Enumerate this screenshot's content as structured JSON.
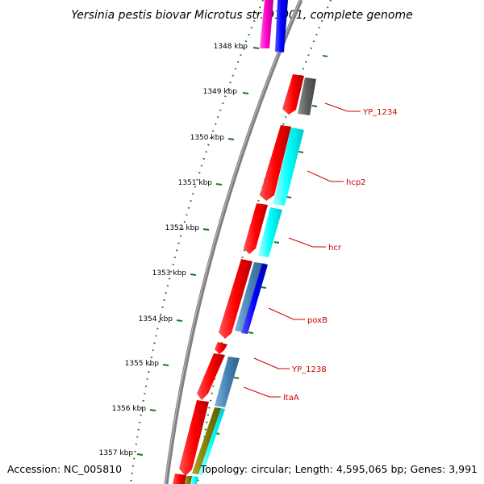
{
  "title": "Yersinia pestis biovar Microtus str. 91001, complete genome",
  "footer": {
    "accession": "Accession: NC_005810",
    "topology": "Topology: circular; Length: 4,595,065 bp; Genes: 3,991"
  },
  "colors": {
    "backbone": "#808080",
    "dotted_ring": "#1a7a1a",
    "label": "#cc0000",
    "gene_red": "#ff0000",
    "gene_cyan": "#00ffff",
    "gene_blue": "#0000ff",
    "gene_gray": "#606060",
    "gene_steel": "#4682b4",
    "gene_magenta": "#ff00cc",
    "gene_olive": "#808000"
  },
  "ticks": [
    {
      "label": "1348 kbp"
    },
    {
      "label": "1349 kbp"
    },
    {
      "label": "1350 kbp"
    },
    {
      "label": "1351 kbp"
    },
    {
      "label": "1352 kbp"
    },
    {
      "label": "1353 kbp"
    },
    {
      "label": "1354 kbp"
    },
    {
      "label": "1355 kbp"
    },
    {
      "label": "1356 kbp"
    },
    {
      "label": "1357 kbp"
    }
  ],
  "gene_labels": [
    {
      "label": "YP_1234"
    },
    {
      "label": "hcp2"
    },
    {
      "label": "hcr"
    },
    {
      "label": "poxB"
    },
    {
      "label": "YP_1238"
    },
    {
      "label": "ltaA"
    }
  ]
}
